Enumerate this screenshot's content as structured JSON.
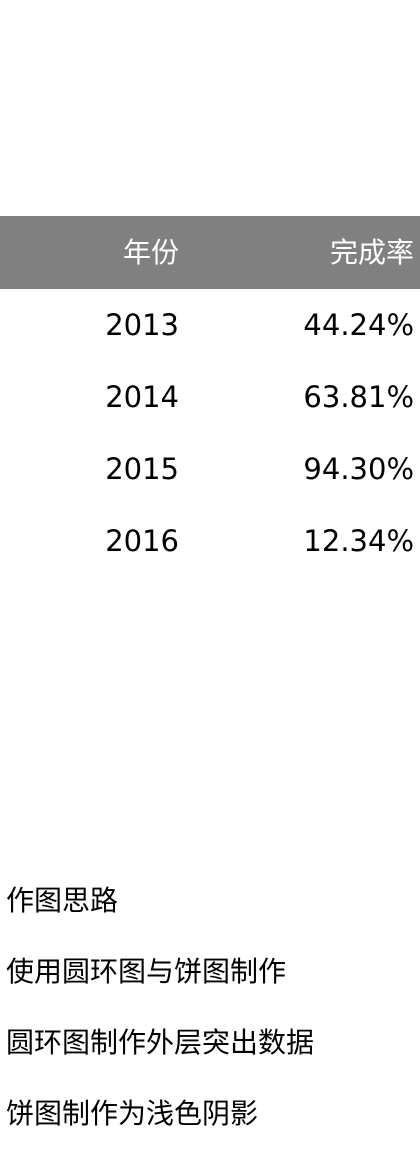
{
  "table": {
    "header": {
      "year": "年份",
      "rate": "完成率"
    },
    "rows": [
      {
        "year": "2013",
        "rate": "44.24%"
      },
      {
        "year": "2014",
        "rate": "63.81%"
      },
      {
        "year": "2015",
        "rate": "94.30%"
      },
      {
        "year": "2016",
        "rate": "12.34%"
      }
    ]
  },
  "notes": {
    "title": "作图思路",
    "lines": [
      "使用圆环图与饼图制作",
      "圆环图制作外层突出数据",
      "饼图制作为浅色阴影"
    ]
  },
  "colors": {
    "header_bg": "#808080",
    "header_text": "#ffffff",
    "body_text": "#000000"
  }
}
